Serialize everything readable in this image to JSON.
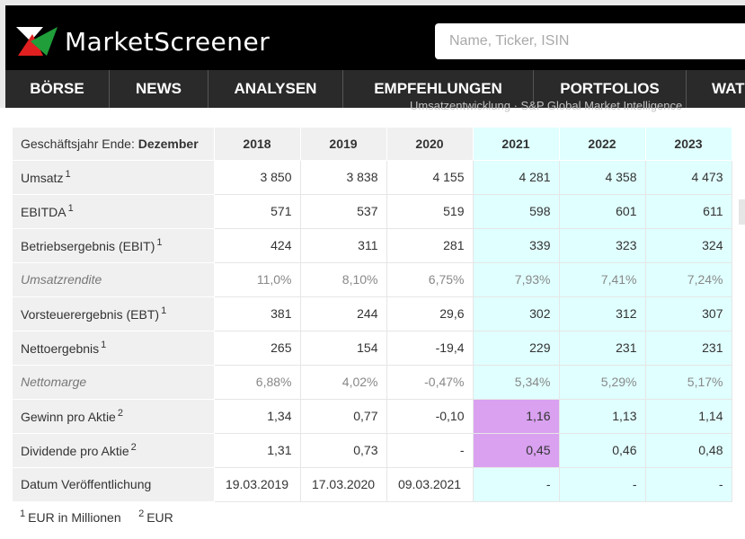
{
  "header": {
    "logo_text": "MarketScreener",
    "search_placeholder": "Name, Ticker, ISIN"
  },
  "nav": {
    "items": [
      "BÖRSE",
      "NEWS",
      "ANALYSEN",
      "EMPFEHLUNGEN",
      "PORTFOLIOS",
      "WATC"
    ]
  },
  "faint_text": "Umsatzentwicklung · S&P Global Market Intelligence",
  "table": {
    "header_label": "Geschäftsjahr Ende:",
    "header_label_bold": "Dezember",
    "years": [
      "2018",
      "2019",
      "2020",
      "2021",
      "2022",
      "2023"
    ],
    "rows": [
      {
        "label": "Umsatz",
        "sup": "1",
        "values": [
          "3 850",
          "3 838",
          "4 155",
          "4 281",
          "4 358",
          "4 473"
        ]
      },
      {
        "label": "EBITDA",
        "sup": "1",
        "values": [
          "571",
          "537",
          "519",
          "598",
          "601",
          "611"
        ]
      },
      {
        "label": "Betriebsergebnis (EBIT)",
        "sup": "1",
        "values": [
          "424",
          "311",
          "281",
          "339",
          "323",
          "324"
        ]
      },
      {
        "label": "Umsatzrendite",
        "sup": "",
        "values": [
          "11,0%",
          "8,10%",
          "6,75%",
          "7,93%",
          "7,41%",
          "7,24%"
        ]
      },
      {
        "label": "Vorsteuerergebnis (EBT)",
        "sup": "1",
        "values": [
          "381",
          "244",
          "29,6",
          "302",
          "312",
          "307"
        ]
      },
      {
        "label": "Nettoergebnis",
        "sup": "1",
        "values": [
          "265",
          "154",
          "-19,4",
          "229",
          "231",
          "231"
        ]
      },
      {
        "label": "Nettomarge",
        "sup": "",
        "values": [
          "6,88%",
          "4,02%",
          "-0,47%",
          "5,34%",
          "5,29%",
          "5,17%"
        ]
      },
      {
        "label": "Gewinn pro Aktie",
        "sup": "2",
        "values": [
          "1,34",
          "0,77",
          "-0,10",
          "1,16",
          "1,13",
          "1,14"
        ]
      },
      {
        "label": "Dividende pro Aktie",
        "sup": "2",
        "values": [
          "1,31",
          "0,73",
          "-",
          "0,45",
          "0,46",
          "0,48"
        ]
      },
      {
        "label": "Datum Veröffentlichung",
        "sup": "",
        "values": [
          "19.03.2019",
          "17.03.2020",
          "09.03.2021",
          "-",
          "-",
          "-"
        ]
      }
    ]
  },
  "footnotes": {
    "n1": "1",
    "t1": "EUR in Millionen",
    "n2": "2",
    "t2": "EUR"
  },
  "colors": {
    "forecast_bg": "#e0ffff",
    "highlight_bg": "#d9a1f0",
    "nav_bg": "#2a2a2a",
    "header_bg": "#000000"
  }
}
